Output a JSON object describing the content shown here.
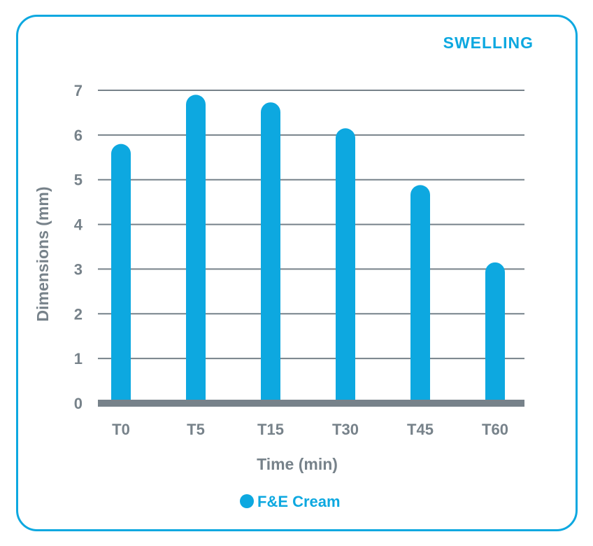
{
  "chart_data": {
    "type": "bar",
    "title": "SWELLING",
    "xlabel": "Time (min)",
    "ylabel": "Dimensions (mm)",
    "categories": [
      "T0",
      "T5",
      "T15",
      "T30",
      "T45",
      "T60"
    ],
    "series": [
      {
        "name": "F&E Cream",
        "values": [
          5.8,
          6.9,
          6.73,
          6.15,
          4.88,
          3.15
        ],
        "color": "#0da8e0"
      }
    ],
    "ylim": [
      0,
      7
    ],
    "yticks": [
      0,
      1,
      2,
      3,
      4,
      5,
      6,
      7
    ],
    "grid": true,
    "legend_position": "bottom-center",
    "frame_color": "#0da8e0",
    "grid_color": "#77828a"
  }
}
